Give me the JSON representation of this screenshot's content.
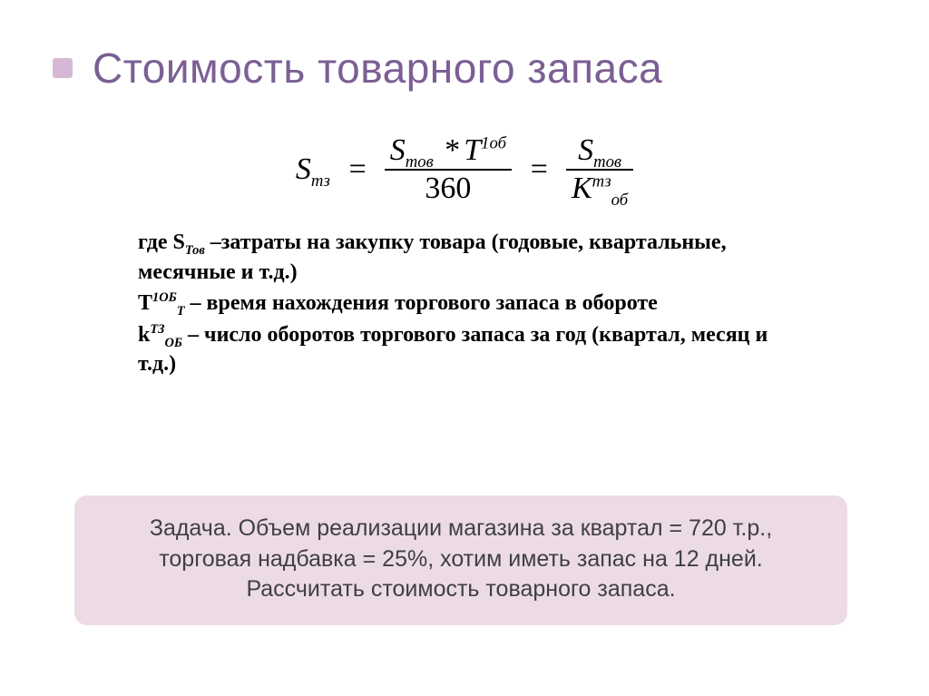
{
  "title": "Стоимость товарного запаса",
  "colors": {
    "title_text": "#7b5f94",
    "bullet_bg": "#d4b8d6",
    "task_bg": "#ecdbe6",
    "task_text": "#404040",
    "body_text": "#000000",
    "page_bg": "#ffffff"
  },
  "formula": {
    "lhs_base": "S",
    "lhs_sub": "тз",
    "eq": "=",
    "frac1": {
      "num_left_base": "S",
      "num_left_sub": "тов",
      "num_op": "*",
      "num_right_base": "T",
      "num_right_sup": "1об",
      "den": "360"
    },
    "frac2": {
      "num_base": "S",
      "num_sub": "тов",
      "den_base": "K",
      "den_sup": "тз",
      "den_sub": "об"
    }
  },
  "definitions": {
    "intro_word": "где ",
    "d1": {
      "sym_base": "S",
      "sym_sub": "Тов",
      "text": " –затраты на закупку товара (годовые, квартальные, месячные и т.д.)"
    },
    "d2": {
      "sym_base": "Т",
      "sym_sup": "1ОБ",
      "sym_sub": "Т",
      "text": " – время нахождения торгового запаса в обороте"
    },
    "d3": {
      "sym_base": "k",
      "sym_sup": "ТЗ",
      "sym_sub": "ОБ",
      "text": " – число оборотов торгового запаса за год (квартал, месяц и т.д.)"
    }
  },
  "task": {
    "line1": "Задача. Объем реализации магазина за квартал = 720 т.р.,",
    "line2": "торговая надбавка = 25%, хотим иметь запас на 12 дней.",
    "line3": "Рассчитать стоимость товарного запаса."
  }
}
